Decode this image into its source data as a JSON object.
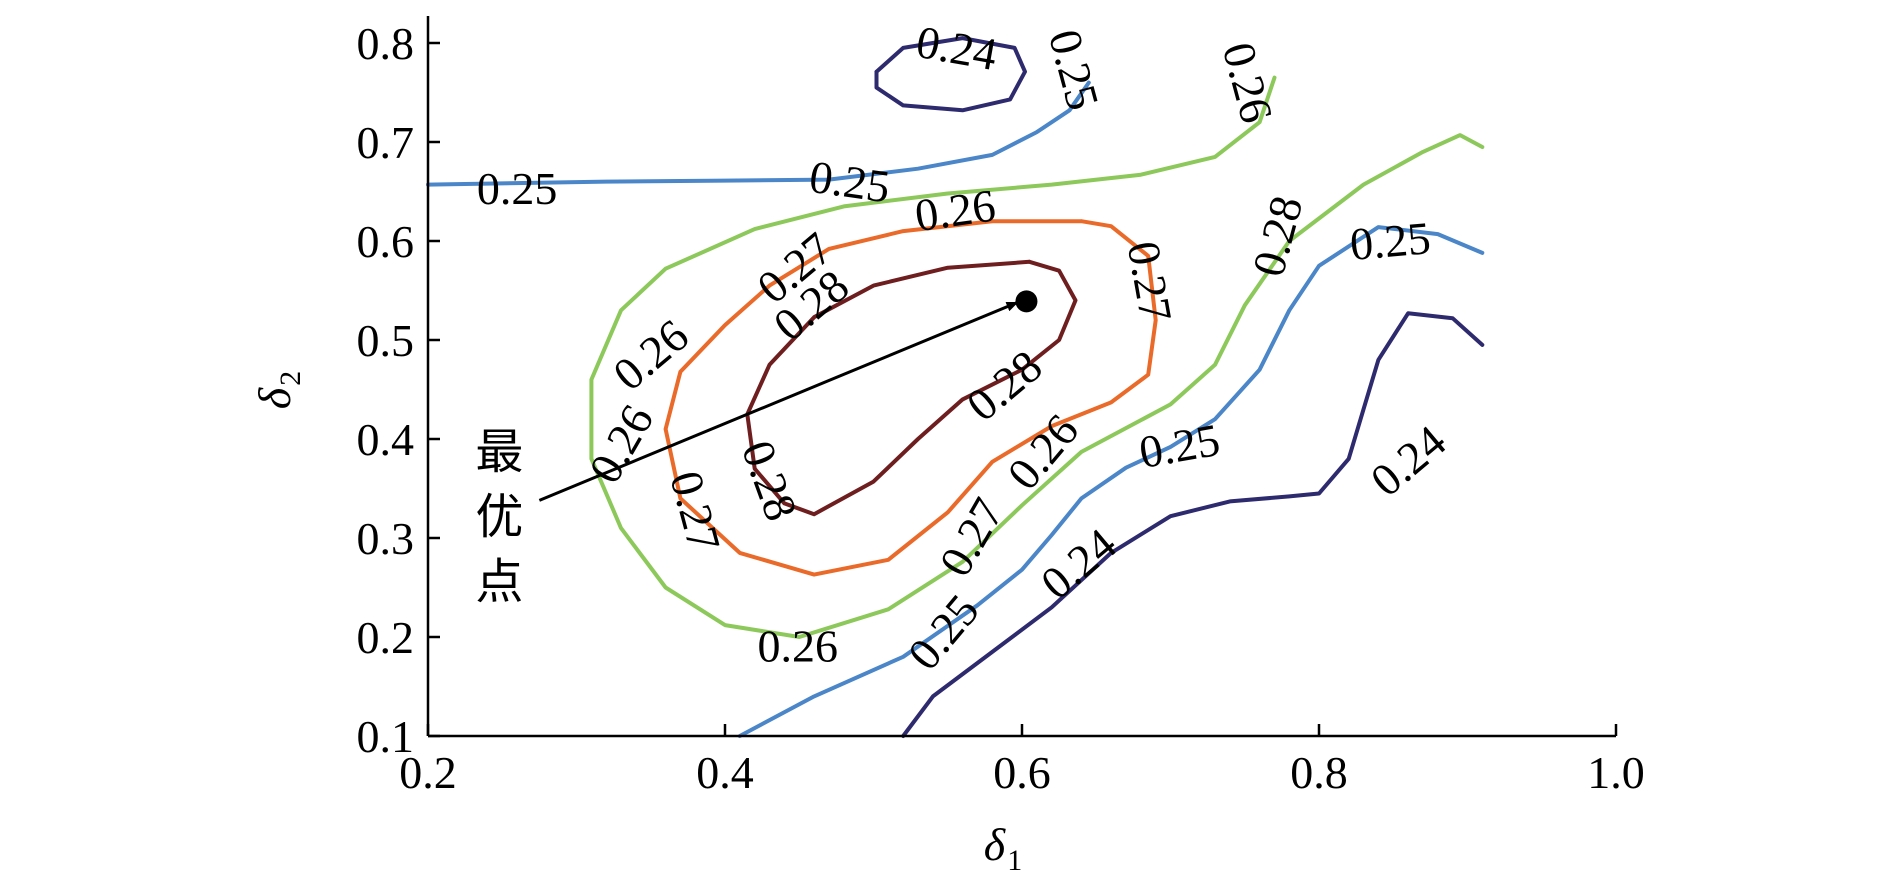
{
  "chart_data": {
    "type": "contour",
    "xlabel": "δ",
    "xlabel_sub": "1",
    "ylabel": "δ",
    "ylabel_sub": "2",
    "xlim": [
      0.2,
      1.0
    ],
    "ylim": [
      0.1,
      0.83
    ],
    "xticks": [
      "0.2",
      "0.4",
      "0.6",
      "0.8",
      "1.0"
    ],
    "xtick_values": [
      0.2,
      0.4,
      0.6,
      0.8,
      1.0
    ],
    "yticks": [
      "0.1",
      "0.2",
      "0.3",
      "0.4",
      "0.5",
      "0.6",
      "0.7",
      "0.8"
    ],
    "ytick_values": [
      0.1,
      0.2,
      0.3,
      0.4,
      0.5,
      0.6,
      0.7,
      0.8
    ],
    "grid": false,
    "colors": {
      "0.24": "#2e2a6e",
      "0.25": "#4a86c8",
      "0.26": "#8cc85a",
      "0.27": "#ea6a2a",
      "0.28": "#6e1e1e"
    },
    "contours": [
      {
        "level": "0.24",
        "points": [
          [
            0.502,
            0.771
          ],
          [
            0.52,
            0.795
          ],
          [
            0.56,
            0.805
          ],
          [
            0.595,
            0.795
          ],
          [
            0.602,
            0.771
          ],
          [
            0.592,
            0.743
          ],
          [
            0.56,
            0.732
          ],
          [
            0.52,
            0.737
          ],
          [
            0.502,
            0.755
          ],
          [
            0.502,
            0.771
          ]
        ]
      },
      {
        "level": "0.24",
        "points": [
          [
            0.52,
            0.1
          ],
          [
            0.54,
            0.14
          ],
          [
            0.58,
            0.185
          ],
          [
            0.62,
            0.23
          ],
          [
            0.66,
            0.285
          ],
          [
            0.7,
            0.322
          ],
          [
            0.74,
            0.337
          ],
          [
            0.78,
            0.342
          ],
          [
            0.8,
            0.345
          ],
          [
            0.82,
            0.38
          ],
          [
            0.83,
            0.43
          ],
          [
            0.84,
            0.48
          ],
          [
            0.86,
            0.527
          ],
          [
            0.89,
            0.522
          ],
          [
            0.91,
            0.495
          ]
        ]
      },
      {
        "level": "0.25",
        "points": [
          [
            0.2,
            0.657
          ],
          [
            0.32,
            0.66
          ],
          [
            0.4,
            0.661
          ],
          [
            0.47,
            0.662
          ],
          [
            0.53,
            0.673
          ],
          [
            0.58,
            0.687
          ],
          [
            0.61,
            0.71
          ],
          [
            0.632,
            0.732
          ],
          [
            0.645,
            0.76
          ]
        ]
      },
      {
        "level": "0.25",
        "points": [
          [
            0.41,
            0.1
          ],
          [
            0.46,
            0.14
          ],
          [
            0.52,
            0.18
          ],
          [
            0.57,
            0.232
          ],
          [
            0.6,
            0.268
          ],
          [
            0.62,
            0.303
          ],
          [
            0.64,
            0.34
          ],
          [
            0.67,
            0.371
          ],
          [
            0.7,
            0.392
          ],
          [
            0.73,
            0.42
          ],
          [
            0.76,
            0.47
          ],
          [
            0.78,
            0.53
          ],
          [
            0.8,
            0.575
          ],
          [
            0.84,
            0.614
          ],
          [
            0.88,
            0.607
          ],
          [
            0.91,
            0.588
          ]
        ]
      },
      {
        "level": "0.26",
        "points": [
          [
            0.77,
            0.765
          ],
          [
            0.76,
            0.72
          ],
          [
            0.73,
            0.685
          ],
          [
            0.68,
            0.667
          ],
          [
            0.62,
            0.657
          ],
          [
            0.55,
            0.648
          ],
          [
            0.48,
            0.635
          ],
          [
            0.42,
            0.612
          ],
          [
            0.36,
            0.572
          ],
          [
            0.33,
            0.53
          ],
          [
            0.31,
            0.46
          ],
          [
            0.31,
            0.38
          ],
          [
            0.33,
            0.31
          ],
          [
            0.36,
            0.25
          ],
          [
            0.4,
            0.212
          ],
          [
            0.45,
            0.2
          ],
          [
            0.51,
            0.228
          ],
          [
            0.56,
            0.276
          ],
          [
            0.6,
            0.333
          ],
          [
            0.64,
            0.387
          ],
          [
            0.7,
            0.435
          ],
          [
            0.73,
            0.475
          ],
          [
            0.75,
            0.535
          ],
          [
            0.78,
            0.6
          ],
          [
            0.83,
            0.657
          ],
          [
            0.87,
            0.69
          ],
          [
            0.895,
            0.707
          ],
          [
            0.91,
            0.695
          ]
        ]
      },
      {
        "level": "0.27",
        "points": [
          [
            0.64,
            0.62
          ],
          [
            0.58,
            0.62
          ],
          [
            0.52,
            0.61
          ],
          [
            0.47,
            0.592
          ],
          [
            0.43,
            0.555
          ],
          [
            0.4,
            0.515
          ],
          [
            0.37,
            0.468
          ],
          [
            0.36,
            0.41
          ],
          [
            0.37,
            0.34
          ],
          [
            0.41,
            0.285
          ],
          [
            0.46,
            0.263
          ],
          [
            0.51,
            0.278
          ],
          [
            0.55,
            0.326
          ],
          [
            0.58,
            0.377
          ],
          [
            0.62,
            0.413
          ],
          [
            0.66,
            0.437
          ],
          [
            0.685,
            0.465
          ],
          [
            0.69,
            0.52
          ],
          [
            0.685,
            0.585
          ],
          [
            0.66,
            0.615
          ],
          [
            0.64,
            0.62
          ]
        ]
      },
      {
        "level": "0.28",
        "points": [
          [
            0.605,
            0.579
          ],
          [
            0.55,
            0.573
          ],
          [
            0.5,
            0.555
          ],
          [
            0.46,
            0.523
          ],
          [
            0.43,
            0.475
          ],
          [
            0.415,
            0.425
          ],
          [
            0.42,
            0.37
          ],
          [
            0.44,
            0.335
          ],
          [
            0.46,
            0.324
          ],
          [
            0.5,
            0.357
          ],
          [
            0.53,
            0.4
          ],
          [
            0.56,
            0.44
          ],
          [
            0.6,
            0.47
          ],
          [
            0.625,
            0.5
          ],
          [
            0.636,
            0.54
          ],
          [
            0.625,
            0.57
          ],
          [
            0.605,
            0.579
          ]
        ]
      }
    ],
    "contour_labels": [
      {
        "text": "0.24",
        "x": 0.556,
        "y": 0.795,
        "angle": 10
      },
      {
        "text": "0.25",
        "x": 0.635,
        "y": 0.773,
        "angle": 75
      },
      {
        "text": "0.26",
        "x": 0.752,
        "y": 0.76,
        "angle": 75
      },
      {
        "text": "0.25",
        "x": 0.26,
        "y": 0.653,
        "angle": 0
      },
      {
        "text": "0.25",
        "x": 0.484,
        "y": 0.66,
        "angle": 8
      },
      {
        "text": "0.26",
        "x": 0.555,
        "y": 0.631,
        "angle": -8
      },
      {
        "text": "0.27",
        "x": 0.447,
        "y": 0.573,
        "angle": -40
      },
      {
        "text": "0.28",
        "x": 0.458,
        "y": 0.535,
        "angle": -40
      },
      {
        "text": "0.27",
        "x": 0.686,
        "y": 0.559,
        "angle": 80
      },
      {
        "text": "0.28",
        "x": 0.772,
        "y": 0.605,
        "angle": -75
      },
      {
        "text": "0.25",
        "x": 0.848,
        "y": 0.6,
        "angle": -5
      },
      {
        "text": "0.26",
        "x": 0.35,
        "y": 0.485,
        "angle": -40
      },
      {
        "text": "0.28",
        "x": 0.588,
        "y": 0.454,
        "angle": -40
      },
      {
        "text": "0.26",
        "x": 0.33,
        "y": 0.395,
        "angle": -60
      },
      {
        "text": "0.28",
        "x": 0.43,
        "y": 0.358,
        "angle": 70
      },
      {
        "text": "0.27",
        "x": 0.38,
        "y": 0.327,
        "angle": 75
      },
      {
        "text": "0.26",
        "x": 0.614,
        "y": 0.387,
        "angle": -50
      },
      {
        "text": "0.25",
        "x": 0.706,
        "y": 0.393,
        "angle": -10
      },
      {
        "text": "0.24",
        "x": 0.86,
        "y": 0.378,
        "angle": -40
      },
      {
        "text": "0.27",
        "x": 0.566,
        "y": 0.301,
        "angle": -60
      },
      {
        "text": "0.24",
        "x": 0.638,
        "y": 0.274,
        "angle": -40
      },
      {
        "text": "0.26",
        "x": 0.449,
        "y": 0.191,
        "angle": 0
      },
      {
        "text": "0.25",
        "x": 0.547,
        "y": 0.205,
        "angle": -50
      }
    ],
    "annotation": {
      "text_lines": [
        "最",
        "优",
        "点"
      ],
      "arrow_from": [
        0.275,
        0.338
      ],
      "arrow_to": [
        0.597,
        0.538
      ],
      "point": [
        0.603,
        0.539
      ]
    }
  }
}
